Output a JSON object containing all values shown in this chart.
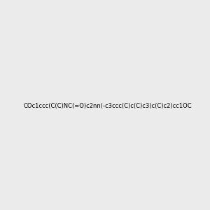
{
  "smiles": "COc1ccc(C(C)NC(=O)c2nn(-c3ccc(C)c(C)c3)c(C)c2)cc1OC",
  "title": "",
  "bg_color": "#ebebeb",
  "img_size": [
    300,
    300
  ],
  "dpi": 100
}
